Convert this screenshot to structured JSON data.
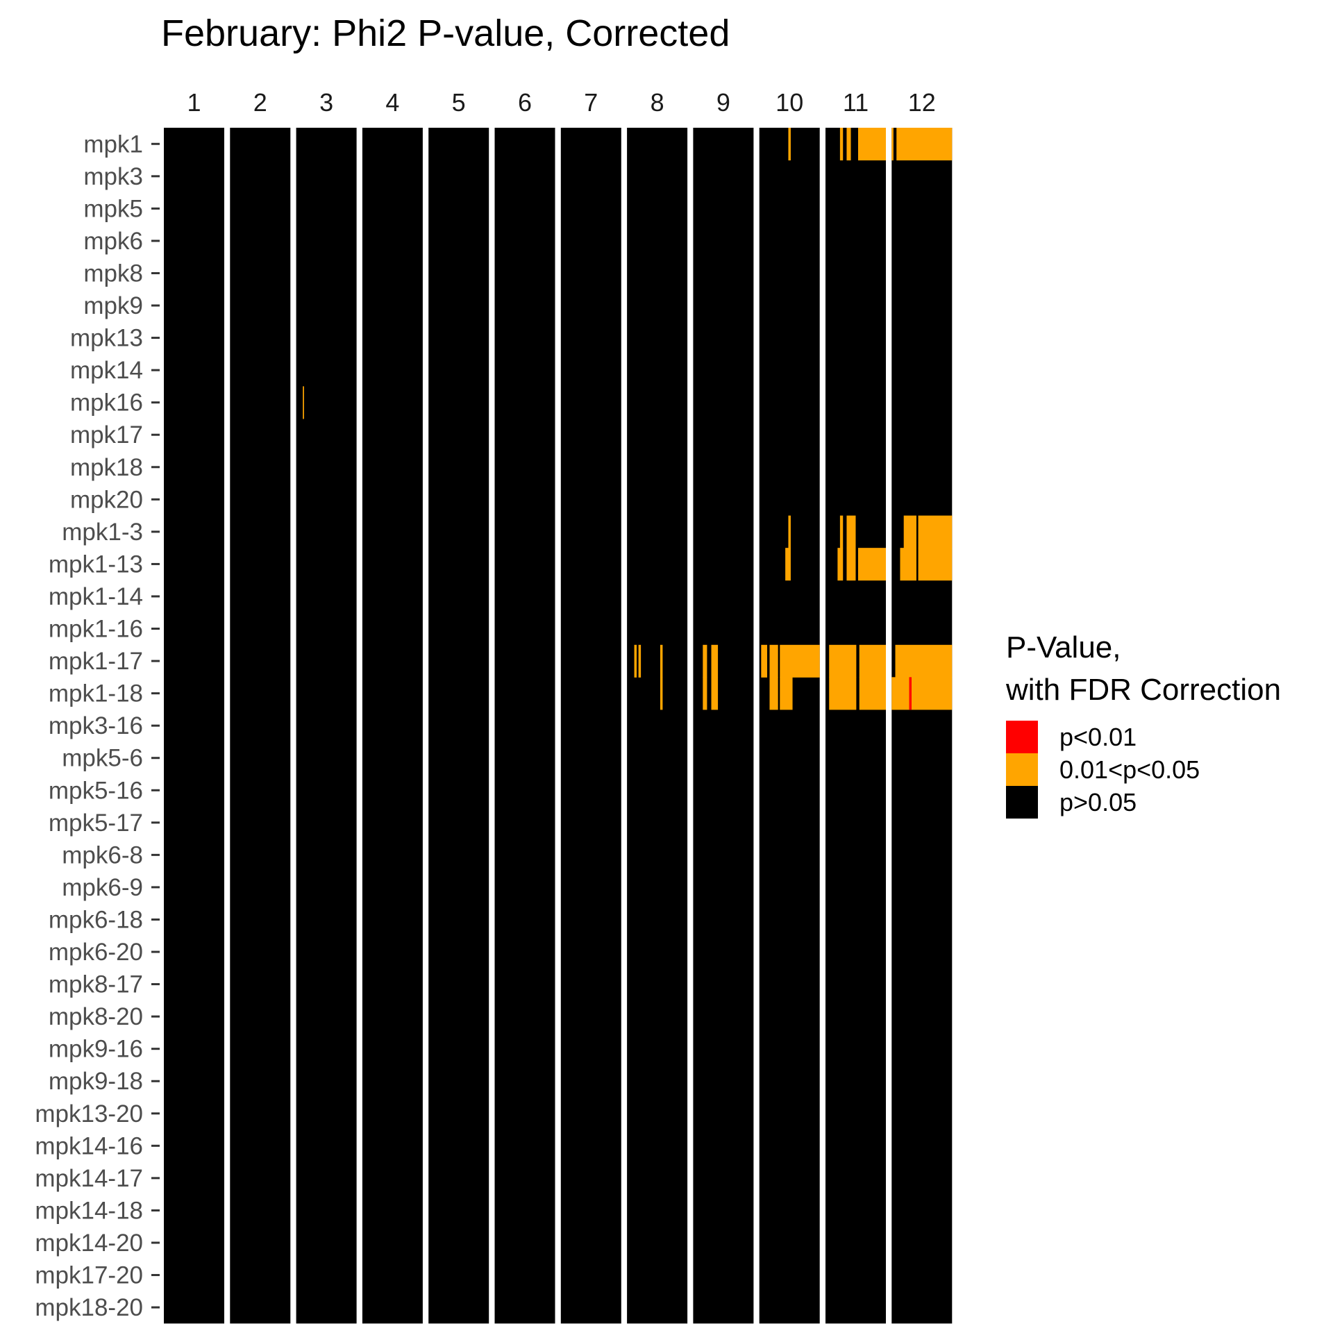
{
  "chart_data": {
    "type": "heatmap",
    "title": "February: Phi2 P-value, Corrected",
    "facets": [
      "1",
      "2",
      "3",
      "4",
      "5",
      "6",
      "7",
      "8",
      "9",
      "10",
      "11",
      "12"
    ],
    "rows": [
      "mpk1",
      "mpk3",
      "mpk5",
      "mpk6",
      "mpk8",
      "mpk9",
      "mpk13",
      "mpk14",
      "mpk16",
      "mpk17",
      "mpk18",
      "mpk20",
      "mpk1-3",
      "mpk1-13",
      "mpk1-14",
      "mpk1-16",
      "mpk1-17",
      "mpk1-18",
      "mpk3-16",
      "mpk5-6",
      "mpk5-16",
      "mpk5-17",
      "mpk6-8",
      "mpk6-9",
      "mpk6-18",
      "mpk6-20",
      "mpk8-17",
      "mpk8-20",
      "mpk9-16",
      "mpk9-18",
      "mpk13-20",
      "mpk14-16",
      "mpk14-17",
      "mpk14-18",
      "mpk14-20",
      "mpk17-20",
      "mpk18-20"
    ],
    "categories": [
      {
        "name": "p<0.01",
        "color": "#ff0000"
      },
      {
        "name": "0.01<p<0.05",
        "color": "#ffa500"
      },
      {
        "name": "p>0.05",
        "color": "#000000"
      }
    ],
    "default_category": "p>0.05",
    "significant_cells": [
      {
        "facet": "3",
        "row": "mpk16",
        "x_from": 0.11,
        "x_to": 0.13,
        "category": "0.01<p<0.05"
      },
      {
        "facet": "8",
        "row": "mpk1-17",
        "x_from": 0.12,
        "x_to": 0.16,
        "category": "0.01<p<0.05"
      },
      {
        "facet": "8",
        "row": "mpk1-17",
        "x_from": 0.19,
        "x_to": 0.23,
        "category": "0.01<p<0.05"
      },
      {
        "facet": "8",
        "row": "mpk1-17",
        "x_from": 0.55,
        "x_to": 0.59,
        "category": "0.01<p<0.05"
      },
      {
        "facet": "8",
        "row": "mpk1-18",
        "x_from": 0.55,
        "x_to": 0.59,
        "category": "0.01<p<0.05"
      },
      {
        "facet": "9",
        "row": "mpk1-17",
        "x_from": 0.16,
        "x_to": 0.23,
        "category": "0.01<p<0.05"
      },
      {
        "facet": "9",
        "row": "mpk1-17",
        "x_from": 0.3,
        "x_to": 0.41,
        "category": "0.01<p<0.05"
      },
      {
        "facet": "9",
        "row": "mpk1-18",
        "x_from": 0.16,
        "x_to": 0.23,
        "category": "0.01<p<0.05"
      },
      {
        "facet": "9",
        "row": "mpk1-18",
        "x_from": 0.3,
        "x_to": 0.41,
        "category": "0.01<p<0.05"
      },
      {
        "facet": "10",
        "row": "mpk1",
        "x_from": 0.48,
        "x_to": 0.52,
        "category": "0.01<p<0.05"
      },
      {
        "facet": "10",
        "row": "mpk1-3",
        "x_from": 0.48,
        "x_to": 0.52,
        "category": "0.01<p<0.05"
      },
      {
        "facet": "10",
        "row": "mpk1-13",
        "x_from": 0.43,
        "x_to": 0.52,
        "category": "0.01<p<0.05"
      },
      {
        "facet": "10",
        "row": "mpk1-17",
        "x_from": 0.03,
        "x_to": 0.13,
        "category": "0.01<p<0.05"
      },
      {
        "facet": "10",
        "row": "mpk1-17",
        "x_from": 0.17,
        "x_to": 0.31,
        "category": "0.01<p<0.05"
      },
      {
        "facet": "10",
        "row": "mpk1-17",
        "x_from": 0.34,
        "x_to": 1.0,
        "category": "0.01<p<0.05"
      },
      {
        "facet": "10",
        "row": "mpk1-18",
        "x_from": 0.17,
        "x_to": 0.31,
        "category": "0.01<p<0.05"
      },
      {
        "facet": "10",
        "row": "mpk1-18",
        "x_from": 0.34,
        "x_to": 0.55,
        "category": "0.01<p<0.05"
      },
      {
        "facet": "11",
        "row": "mpk1",
        "x_from": 0.24,
        "x_to": 0.29,
        "category": "0.01<p<0.05"
      },
      {
        "facet": "11",
        "row": "mpk1",
        "x_from": 0.35,
        "x_to": 0.42,
        "category": "0.01<p<0.05"
      },
      {
        "facet": "11",
        "row": "mpk1",
        "x_from": 0.54,
        "x_to": 1.0,
        "category": "0.01<p<0.05"
      },
      {
        "facet": "11",
        "row": "mpk1-3",
        "x_from": 0.24,
        "x_to": 0.29,
        "category": "0.01<p<0.05"
      },
      {
        "facet": "11",
        "row": "mpk1-3",
        "x_from": 0.35,
        "x_to": 0.5,
        "category": "0.01<p<0.05"
      },
      {
        "facet": "11",
        "row": "mpk1-13",
        "x_from": 0.2,
        "x_to": 0.29,
        "category": "0.01<p<0.05"
      },
      {
        "facet": "11",
        "row": "mpk1-13",
        "x_from": 0.35,
        "x_to": 0.5,
        "category": "0.01<p<0.05"
      },
      {
        "facet": "11",
        "row": "mpk1-13",
        "x_from": 0.54,
        "x_to": 1.0,
        "category": "0.01<p<0.05"
      },
      {
        "facet": "11",
        "row": "mpk1-17",
        "x_from": 0.06,
        "x_to": 0.51,
        "category": "0.01<p<0.05"
      },
      {
        "facet": "11",
        "row": "mpk1-17",
        "x_from": 0.56,
        "x_to": 1.0,
        "category": "0.01<p<0.05"
      },
      {
        "facet": "11",
        "row": "mpk1-18",
        "x_from": 0.06,
        "x_to": 0.51,
        "category": "0.01<p<0.05"
      },
      {
        "facet": "11",
        "row": "mpk1-18",
        "x_from": 0.56,
        "x_to": 1.0,
        "category": "0.01<p<0.05"
      },
      {
        "facet": "12",
        "row": "mpk1",
        "x_from": 0.0,
        "x_to": 0.03,
        "category": "0.01<p<0.05"
      },
      {
        "facet": "12",
        "row": "mpk1",
        "x_from": 0.08,
        "x_to": 1.0,
        "category": "0.01<p<0.05"
      },
      {
        "facet": "12",
        "row": "mpk1-3",
        "x_from": 0.2,
        "x_to": 0.41,
        "category": "0.01<p<0.05"
      },
      {
        "facet": "12",
        "row": "mpk1-3",
        "x_from": 0.44,
        "x_to": 1.0,
        "category": "0.01<p<0.05"
      },
      {
        "facet": "12",
        "row": "mpk1-13",
        "x_from": 0.14,
        "x_to": 0.41,
        "category": "0.01<p<0.05"
      },
      {
        "facet": "12",
        "row": "mpk1-13",
        "x_from": 0.44,
        "x_to": 1.0,
        "category": "0.01<p<0.05"
      },
      {
        "facet": "12",
        "row": "mpk1-17",
        "x_from": 0.06,
        "x_to": 1.0,
        "category": "0.01<p<0.05"
      },
      {
        "facet": "12",
        "row": "mpk1-18",
        "x_from": 0.0,
        "x_to": 1.0,
        "category": "0.01<p<0.05"
      },
      {
        "facet": "12",
        "row": "mpk1-18",
        "x_from": 0.29,
        "x_to": 0.33,
        "category": "p<0.01"
      }
    ],
    "legend": {
      "title_lines": [
        "P-Value,",
        "with FDR Correction"
      ],
      "position": "right"
    },
    "grid": false
  }
}
